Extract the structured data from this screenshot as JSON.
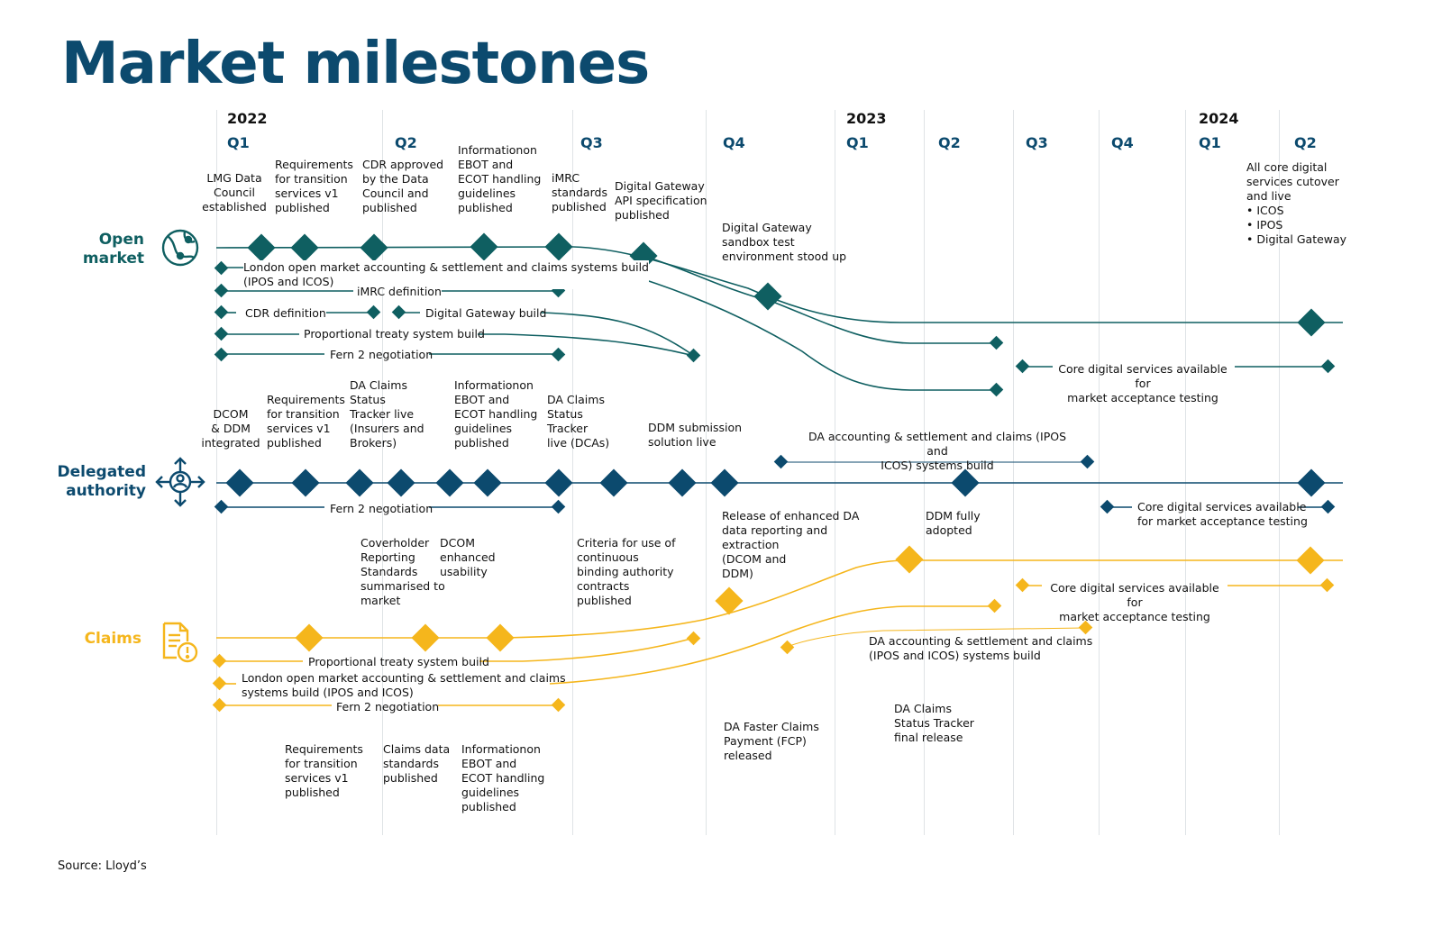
{
  "title": "Market milestones",
  "source": "Source: Lloyd’s",
  "years": [
    "2022",
    "2023",
    "2024"
  ],
  "quarters": [
    "Q1",
    "Q2",
    "Q3",
    "Q4",
    "Q1",
    "Q2",
    "Q3",
    "Q4",
    "Q1",
    "Q2"
  ],
  "colors": {
    "open_market": "#0f5f61",
    "delegated": "#0c4a6e",
    "claims": "#f5b61c",
    "grid": "#dfe3e6"
  },
  "lanes": {
    "open_market": {
      "label": "Open\nmarket",
      "icon": "globe-network-icon"
    },
    "delegated": {
      "label": "Delegated\nauthority",
      "icon": "person-arrows-icon"
    },
    "claims": {
      "label": "Claims",
      "icon": "document-alert-icon"
    }
  },
  "open_market_notes": [
    "LMG Data\nCouncil\nestablished",
    "Requirements\nfor transition\nservices v1\npublished",
    "CDR approved\nby the Data\nCouncil and\npublished",
    "Informationon\nEBOT and\nECOT handling\nguidelines\npublished",
    "iMRC\nstandards\npublished",
    "Digital Gateway\nAPI specification\npublished",
    "Digital Gateway\nsandbox test\nenvironment stood up",
    "All core digital\nservices cutover\nand live\n• ICOS\n• IPOS\n• Digital Gateway"
  ],
  "open_market_bars": [
    "London open market accounting & settlement and claims systems build\n(IPOS and ICOS)",
    "iMRC  definition",
    "CDR definition",
    "Digital Gateway build",
    "Proportional treaty system build",
    "Fern 2 negotiation",
    "Core digital services available for\nmarket acceptance testing"
  ],
  "delegated_notes": [
    "DCOM\n& DDM\nintegrated",
    "Requirements\nfor transition\nservices v1\npublished",
    "DA Claims\nStatus\nTracker live\n(Insurers and\nBrokers)",
    "Informationon\nEBOT and\nECOT handling\nguidelines\npublished",
    "DA Claims\nStatus\nTracker\nlive (DCAs)",
    "DDM submission\nsolution live",
    "Release of enhanced DA\ndata reporting and\nextraction\n(DCOM and\nDDM)",
    "DDM fully\nadopted"
  ],
  "delegated_bars": [
    "DA accounting & settlement and claims (IPOS and\nICOS) systems build",
    "Fern 2 negotiation",
    "Core digital services available\nfor market acceptance testing"
  ],
  "claims_notes": [
    "Coverholder\nReporting\nStandards\nsummarised to\nmarket",
    "DCOM\nenhanced\nusability",
    "Criteria for use of\ncontinuous\nbinding authority\ncontracts\npublished",
    "Requirements\nfor transition\nservices v1\npublished",
    "Claims data\nstandards\npublished",
    "Informationon\nEBOT and\nECOT handling\nguidelines\npublished",
    "DA Faster Claims\nPayment (FCP)\nreleased",
    "DA Claims\nStatus Tracker\nfinal release"
  ],
  "claims_bars": [
    "Proportional treaty system build",
    "London open market accounting & settlement and claims\nsystems build (IPOS and ICOS)",
    "Fern 2 negotiation",
    "Core digital services available for\nmarket acceptance testing",
    "DA accounting & settlement and claims\n(IPOS and ICOS) systems build"
  ]
}
